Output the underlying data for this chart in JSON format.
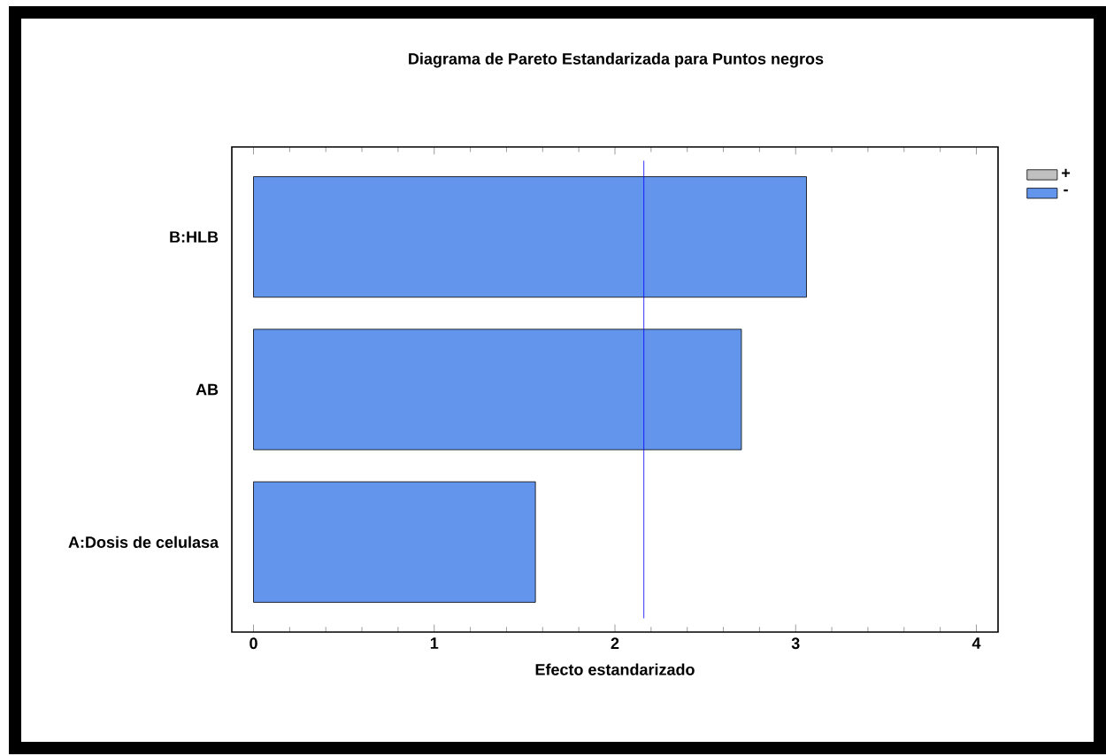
{
  "chart_data": {
    "type": "bar",
    "orientation": "horizontal",
    "title": "Diagrama de Pareto Estandarizada para Puntos negros",
    "xlabel": "Efecto estandarizado",
    "categories": [
      "B:HLB",
      "AB",
      "A:Dosis de celulasa"
    ],
    "series": [
      {
        "name": "+",
        "color": "#c0c0c0",
        "values": [
          null,
          null,
          null
        ]
      },
      {
        "name": "-",
        "color": "#6495ed",
        "values": [
          3.06,
          2.7,
          1.56
        ]
      }
    ],
    "xlim": [
      -0.12,
      4.12
    ],
    "xticks": [
      0,
      1,
      2,
      3,
      4
    ],
    "ref_lines": [
      {
        "axis": "x",
        "value": 2.16,
        "color": "#0000ff"
      }
    ],
    "legend": "top right",
    "grid": false
  }
}
